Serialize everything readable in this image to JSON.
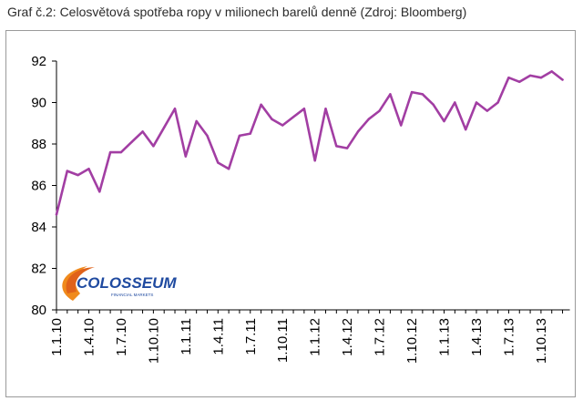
{
  "caption": "Graf č.2: Celosvětová spotřeba ropy v milionech barelů denně (Zdroj: Bloomberg)",
  "logo": {
    "name": "COLOSSEUM",
    "tagline": "FINANCIAL MARKETS"
  },
  "colors": {
    "line": "#a23ea3",
    "axis": "#000000",
    "logo_orange": "#f08a1c",
    "logo_blue": "#1f4aa0"
  },
  "chart_data": {
    "type": "line",
    "title": "",
    "xlabel": "",
    "ylabel": "",
    "ylim": [
      80,
      92
    ],
    "yticks": [
      80,
      82,
      84,
      86,
      88,
      90,
      92
    ],
    "grid": false,
    "legend": "none",
    "x_tick_labels": [
      "1.1.10",
      "1.4.10",
      "1.7.10",
      "1.10.10",
      "1.1.11",
      "1.4.11",
      "1.7.11",
      "1.10.11",
      "1.1.12",
      "1.4.12",
      "1.7.12",
      "1.10.12",
      "1.1.13",
      "1.4.13",
      "1.7.13",
      "1.10.13"
    ],
    "x_tick_indices": [
      0,
      3,
      6,
      9,
      12,
      15,
      18,
      21,
      24,
      27,
      30,
      33,
      36,
      39,
      42,
      45
    ],
    "series": [
      {
        "values": [
          84.6,
          86.7,
          86.5,
          86.8,
          85.7,
          87.6,
          87.6,
          88.1,
          88.6,
          87.9,
          88.8,
          89.7,
          87.4,
          89.1,
          88.4,
          87.1,
          86.8,
          88.4,
          88.5,
          89.9,
          89.2,
          88.9,
          89.3,
          89.7,
          87.2,
          89.7,
          87.9,
          87.8,
          88.6,
          89.2,
          89.6,
          90.4,
          88.9,
          90.5,
          90.4,
          89.9,
          89.1,
          90.0,
          88.7,
          90.0,
          89.6,
          90.0,
          91.2,
          91.0,
          91.3,
          91.2,
          91.5,
          91.1
        ]
      }
    ]
  }
}
